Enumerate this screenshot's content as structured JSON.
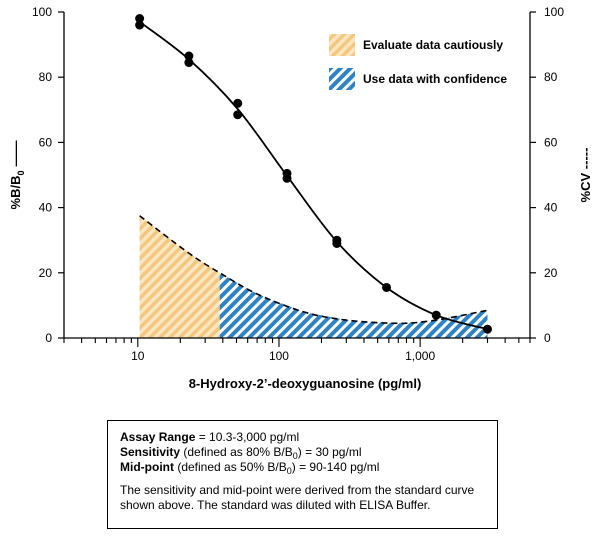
{
  "chart_data": {
    "type": "line",
    "title": "",
    "xlabel": "8-Hydroxy-2’-deoxyguanosine (pg/ml)",
    "ylabel_left": "%B/B",
    "ylabel_left_sub": "0",
    "ylabel_left_suffix": "——",
    "ylabel_right": "%CV -----",
    "x_scale": "log",
    "xlim": [
      3,
      6000
    ],
    "ylim_left": [
      0,
      100
    ],
    "ylim_right": [
      0,
      100
    ],
    "x_tick_labels": [
      "10",
      "100",
      "1,000"
    ],
    "y_tick_labels": [
      "0",
      "20",
      "40",
      "60",
      "80",
      "100"
    ],
    "grid": false,
    "legend_position": "top-right",
    "legend": [
      {
        "label": "Evaluate data cautiously",
        "color": "#f6d39a"
      },
      {
        "label": "Use data with confidence",
        "color": "#2e82c6"
      }
    ],
    "series": [
      {
        "name": "%B/B0",
        "style": "solid-with-points",
        "x": [
          10.3,
          10.3,
          23,
          23,
          51,
          51,
          114,
          114,
          257,
          257,
          578,
          1300,
          3000
        ],
        "y": [
          98,
          96,
          86.5,
          84.5,
          72,
          68.5,
          50.5,
          49,
          30,
          29,
          15.5,
          7,
          2.7
        ]
      },
      {
        "name": "%CV",
        "style": "dashed",
        "x": [
          10.3,
          23,
          38,
          70,
          150,
          300,
          700,
          1300,
          3000
        ],
        "y": [
          37.5,
          26,
          20,
          13.5,
          8,
          5.5,
          4.5,
          5.5,
          8.5
        ]
      }
    ],
    "regions": [
      {
        "legend": "Evaluate data cautiously",
        "x_range": [
          10.3,
          38
        ]
      },
      {
        "legend": "Use data with confidence",
        "x_range": [
          38,
          3000
        ]
      }
    ]
  },
  "info": {
    "range_label": "Assay Range",
    "range_value": " = 10.3-3,000 pg/ml",
    "sensitivity_label": "Sensitivity",
    "sensitivity_pre": " (defined as 80% B/B",
    "sensitivity_sub": "0",
    "sensitivity_post": ") = 30 pg/ml",
    "midpoint_label": "Mid-point",
    "midpoint_pre": " (defined as 50% B/B",
    "midpoint_sub": "0",
    "midpoint_post": ") = 90-140 pg/ml",
    "note": "The sensitivity and mid-point were derived from the standard curve shown above. The standard was diluted with ELISA Buffer."
  }
}
